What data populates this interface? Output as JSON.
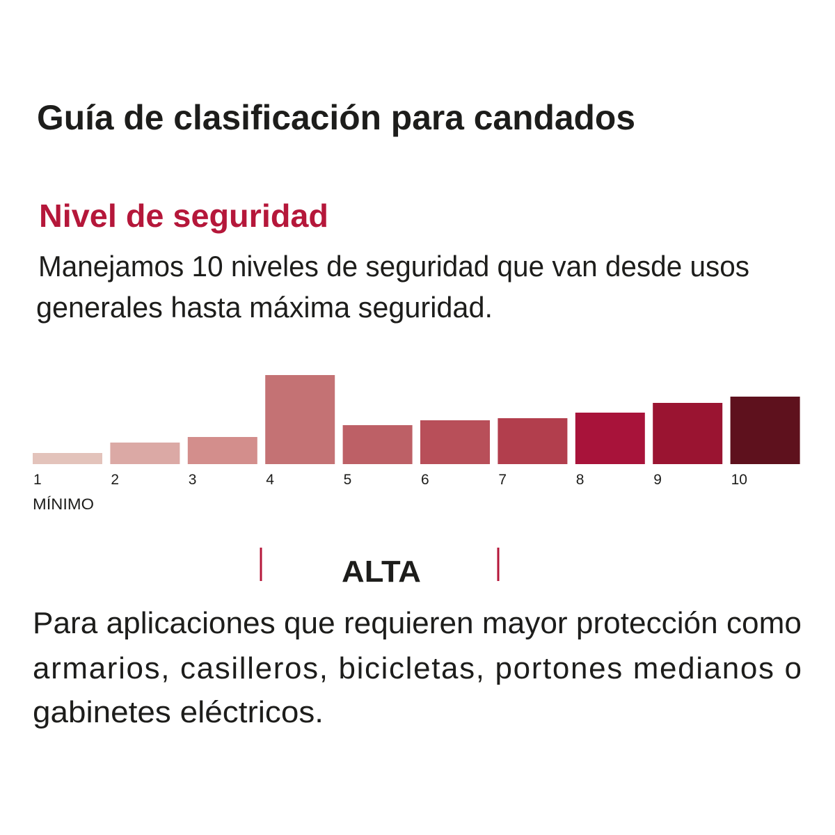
{
  "title": "Guía de clasificación para candados",
  "subtitle": "Nivel de seguridad",
  "description_lines": [
    "Manejamos 10 niveles de seguridad que van desde usos",
    "generales hasta máxima seguridad."
  ],
  "min_label": "MÍNIMO",
  "level_label": "ALTA",
  "paragraph_lines": [
    "Para aplicaciones que requieren mayor protección como",
    "armarios, casilleros, bicicletas, portones medianos o",
    "gabinetes eléctricos."
  ],
  "chart_data": {
    "type": "bar",
    "categories": [
      "1",
      "2",
      "3",
      "4",
      "5",
      "6",
      "7",
      "8",
      "9",
      "10"
    ],
    "values": [
      16,
      31,
      39,
      128,
      56,
      63,
      66,
      74,
      88,
      97
    ],
    "colors": [
      "#e3c3bb",
      "#dba9a5",
      "#d38e8c",
      "#c47274",
      "#bd6066",
      "#b84f59",
      "#b23e4d",
      "#a8133a",
      "#9a1431",
      "#5e111d"
    ],
    "ylim": [
      0,
      130
    ]
  }
}
